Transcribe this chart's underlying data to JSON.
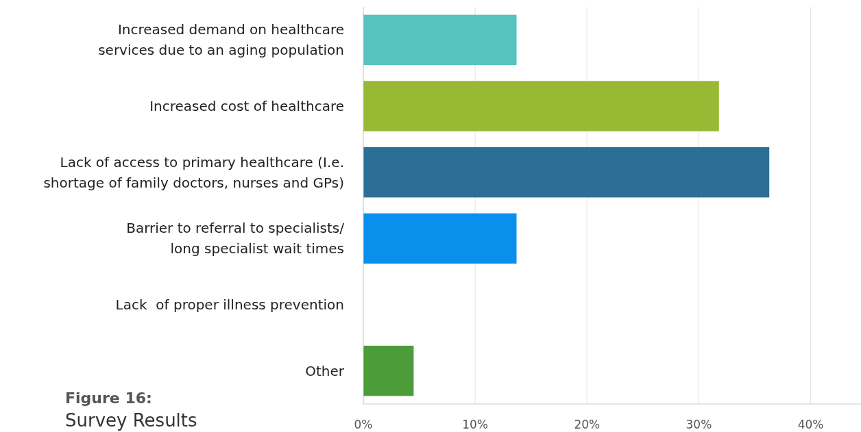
{
  "chart_data": {
    "type": "bar",
    "orientation": "horizontal",
    "title": "Figure 16:",
    "subtitle": "Survey Results",
    "categories": [
      "Increased demand on healthcare\nservices due to an aging population",
      "Increased cost of healthcare",
      "Lack of access to primary healthcare (I.e.\nshortage of family doctors, nurses and GPs)",
      "Barrier to referral to specialists/\nlong specialist wait times",
      "Lack  of proper illness prevention",
      "Other"
    ],
    "values": [
      13.7,
      31.8,
      36.3,
      13.7,
      0,
      4.5
    ],
    "colors": [
      "#57c3c0",
      "#97b933",
      "#2d6e97",
      "#0a90ec",
      "#5a9ad5",
      "#4c9c3a"
    ],
    "xlim": [
      0,
      44.5
    ],
    "xticks": [
      {
        "value": 0,
        "label": "0%"
      },
      {
        "value": 10,
        "label": "10%"
      },
      {
        "value": 20,
        "label": "20%"
      },
      {
        "value": 30,
        "label": "30%"
      },
      {
        "value": 40,
        "label": "40%"
      }
    ],
    "grid": "x"
  }
}
